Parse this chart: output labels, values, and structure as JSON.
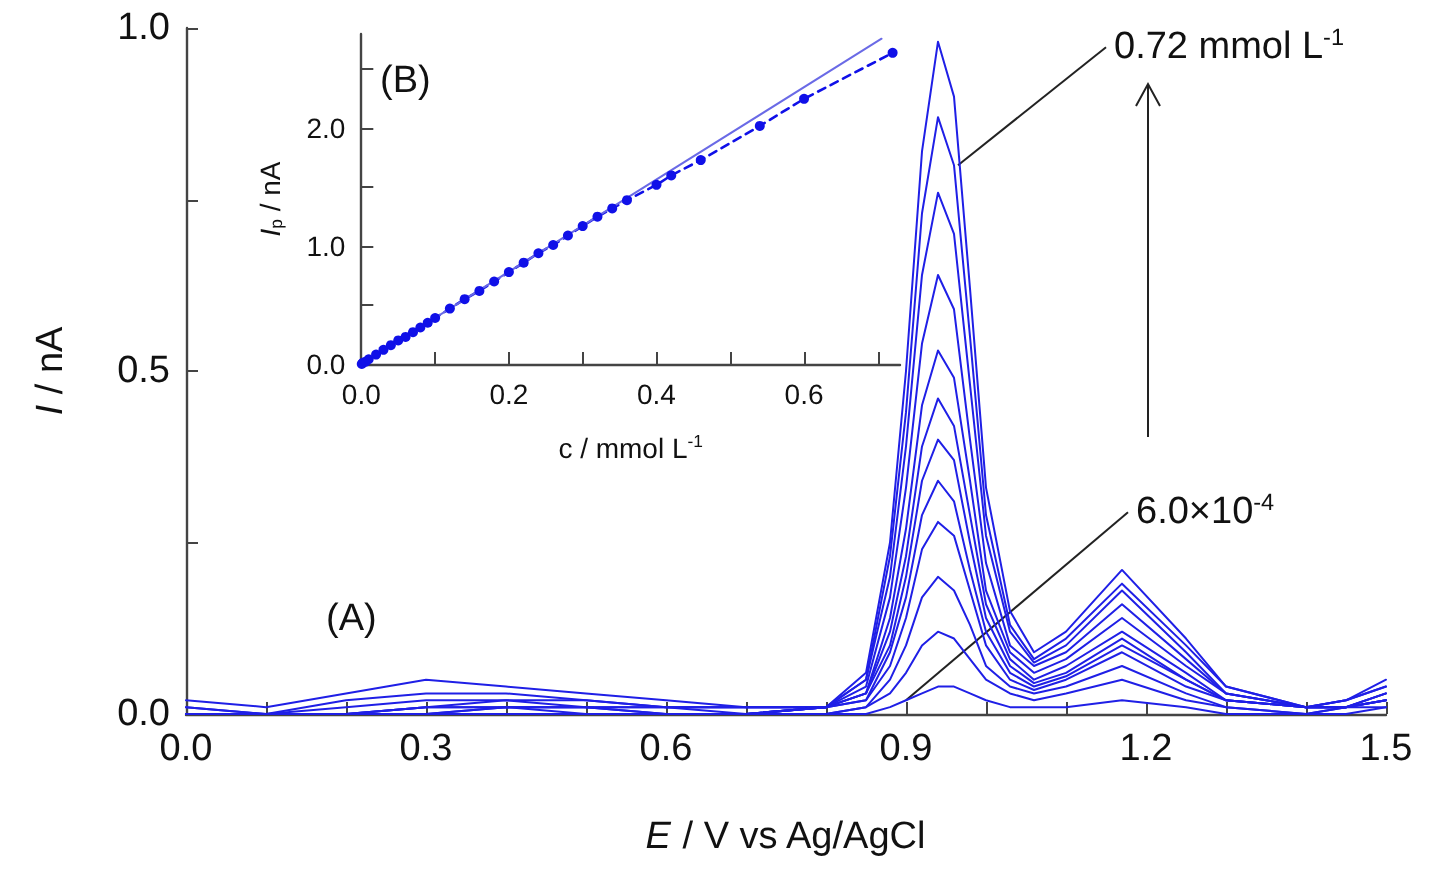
{
  "chart_data": [
    {
      "type": "line",
      "xlabel": "E / V vs Ag/AgCl",
      "ylabel": "I / nA",
      "x": [
        0,
        0.1,
        0.2,
        0.3,
        0.4,
        0.5,
        0.6,
        0.7,
        0.8,
        0.85,
        0.88,
        0.9,
        0.92,
        0.94,
        0.96,
        0.98,
        1.0,
        1.03,
        1.06,
        1.1,
        1.17,
        1.25,
        1.3,
        1.4,
        1.45,
        1.5
      ],
      "series": [
        {
          "color": "#1f1fe6",
          "values": [
            0.02,
            0.01,
            0.03,
            0.05,
            0.04,
            0.03,
            0.02,
            0.01,
            0.01,
            0.06,
            0.25,
            0.5,
            0.82,
            0.98,
            0.9,
            0.62,
            0.33,
            0.15,
            0.09,
            0.12,
            0.21,
            0.11,
            0.04,
            0.01,
            0.02,
            0.05
          ]
        },
        {
          "color": "#1f1fe6",
          "values": [
            0.01,
            0.0,
            0.02,
            0.03,
            0.03,
            0.02,
            0.01,
            0.01,
            0.01,
            0.05,
            0.23,
            0.44,
            0.73,
            0.87,
            0.8,
            0.55,
            0.29,
            0.13,
            0.08,
            0.11,
            0.19,
            0.1,
            0.04,
            0.01,
            0.02,
            0.04
          ]
        },
        {
          "color": "#1f1fe6",
          "values": [
            0.01,
            0.0,
            0.01,
            0.02,
            0.02,
            0.02,
            0.01,
            0.01,
            0.01,
            0.05,
            0.2,
            0.39,
            0.64,
            0.76,
            0.7,
            0.48,
            0.26,
            0.12,
            0.075,
            0.1,
            0.18,
            0.09,
            0.03,
            0.01,
            0.02,
            0.04
          ]
        },
        {
          "color": "#1f1fe6",
          "values": [
            0,
            0,
            0,
            0.01,
            0.02,
            0.01,
            0.01,
            0.01,
            0.01,
            0.04,
            0.17,
            0.33,
            0.54,
            0.64,
            0.59,
            0.4,
            0.22,
            0.1,
            0.07,
            0.09,
            0.16,
            0.08,
            0.03,
            0.01,
            0.01,
            0.03
          ]
        },
        {
          "color": "#1f1fe6",
          "values": [
            0,
            0,
            0,
            0.01,
            0.01,
            0.01,
            0.01,
            0,
            0.01,
            0.03,
            0.14,
            0.27,
            0.45,
            0.53,
            0.49,
            0.34,
            0.18,
            0.09,
            0.06,
            0.08,
            0.14,
            0.07,
            0.03,
            0.01,
            0.01,
            0.03
          ]
        },
        {
          "color": "#1f1fe6",
          "values": [
            0,
            0,
            0,
            0.01,
            0.01,
            0.01,
            0,
            0,
            0.01,
            0.03,
            0.12,
            0.23,
            0.39,
            0.46,
            0.42,
            0.29,
            0.16,
            0.08,
            0.05,
            0.07,
            0.12,
            0.06,
            0.02,
            0.01,
            0.01,
            0.03
          ]
        },
        {
          "color": "#1f1fe6",
          "values": [
            0,
            0,
            0,
            0,
            0.01,
            0.01,
            0,
            0,
            0.01,
            0.03,
            0.1,
            0.2,
            0.34,
            0.4,
            0.37,
            0.25,
            0.14,
            0.07,
            0.045,
            0.06,
            0.11,
            0.05,
            0.02,
            0.01,
            0.01,
            0.02
          ]
        },
        {
          "color": "#1f1fe6",
          "values": [
            0,
            0,
            0,
            0,
            0.01,
            0,
            0,
            0,
            0.01,
            0.02,
            0.09,
            0.17,
            0.29,
            0.34,
            0.31,
            0.21,
            0.12,
            0.06,
            0.04,
            0.055,
            0.1,
            0.05,
            0.02,
            0.01,
            0.01,
            0.02
          ]
        },
        {
          "color": "#1f1fe6",
          "values": [
            0,
            0,
            0,
            0,
            0,
            0,
            0,
            0,
            0.01,
            0.02,
            0.07,
            0.14,
            0.24,
            0.28,
            0.26,
            0.18,
            0.1,
            0.05,
            0.035,
            0.05,
            0.09,
            0.04,
            0.02,
            0.01,
            0.01,
            0.02
          ]
        },
        {
          "color": "#1f1fe6",
          "values": [
            0,
            0,
            0,
            0,
            0,
            0,
            0,
            0,
            0,
            0.01,
            0.05,
            0.1,
            0.17,
            0.2,
            0.18,
            0.13,
            0.07,
            0.04,
            0.03,
            0.04,
            0.07,
            0.03,
            0.01,
            0,
            0.01,
            0.02
          ]
        },
        {
          "color": "#1f1fe6",
          "values": [
            0,
            0,
            0,
            0,
            0,
            0,
            0,
            0,
            0,
            0.01,
            0.03,
            0.06,
            0.1,
            0.12,
            0.11,
            0.08,
            0.05,
            0.03,
            0.02,
            0.03,
            0.05,
            0.02,
            0.01,
            0,
            0.01,
            0.01
          ]
        },
        {
          "color": "#1f1fe6",
          "values": [
            0,
            0,
            0,
            0,
            0,
            0,
            0,
            0,
            0,
            0,
            0.01,
            0.02,
            0.03,
            0.04,
            0.04,
            0.03,
            0.02,
            0.01,
            0.01,
            0.01,
            0.02,
            0.01,
            0,
            0,
            0,
            0.01
          ]
        }
      ],
      "xlim": [
        0,
        1.5
      ],
      "xticks": [
        {
          "value": 0,
          "label": "0.0"
        },
        {
          "value": 0.1,
          "label": null
        },
        {
          "value": 0.2,
          "label": null
        },
        0.3,
        {
          "value": 0.4,
          "label": null
        },
        {
          "value": 0.5,
          "label": null
        },
        0.6,
        {
          "value": 0.7,
          "label": null
        },
        {
          "value": 0.8,
          "label": null
        },
        0.9,
        {
          "value": 1.0,
          "label": null
        },
        {
          "value": 1.1,
          "label": null
        },
        1.2,
        {
          "value": 1.3,
          "label": null
        },
        {
          "value": 1.4,
          "label": null
        },
        1.5
      ],
      "ylim": [
        0,
        1.0
      ],
      "yticks": [
        {
          "value": 0,
          "label": "0.0"
        },
        {
          "value": 0.25,
          "label": null
        },
        0.5,
        {
          "value": 0.75,
          "label": null
        },
        {
          "value": 1.0,
          "label": "1.0"
        }
      ],
      "annotations": [
        "(A)",
        {
          "text": "0.72 mmol L$^{-1}$",
          "x": 0.965,
          "y": 0.8
        },
        {
          "text": "6.0×10$^{-4}$",
          "x": 0.9,
          "y": 0.02
        }
      ],
      "marker": "none",
      "line_style": "solid"
    },
    {
      "type": "line",
      "xlabel": "c / mmol L$^{-1}$",
      "ylabel": "I$_{p}$ / nA",
      "series": [
        {
          "color": "#1010e8",
          "marker": "circle",
          "line_style": "dashed",
          "x": [
            0.0006,
            0.002,
            0.006,
            0.01,
            0.02,
            0.03,
            0.04,
            0.05,
            0.06,
            0.07,
            0.08,
            0.09,
            0.1,
            0.12,
            0.14,
            0.16,
            0.18,
            0.2,
            0.22,
            0.24,
            0.26,
            0.28,
            0.3,
            0.32,
            0.34,
            0.36,
            0.4,
            0.42,
            0.46,
            0.54,
            0.6,
            0.72
          ],
          "values": [
            0.0,
            0.01,
            0.02,
            0.04,
            0.08,
            0.12,
            0.16,
            0.2,
            0.23,
            0.27,
            0.31,
            0.35,
            0.39,
            0.47,
            0.55,
            0.62,
            0.7,
            0.78,
            0.86,
            0.94,
            1.01,
            1.09,
            1.17,
            1.25,
            1.32,
            1.39,
            1.52,
            1.6,
            1.73,
            2.02,
            2.25,
            2.64
          ]
        },
        {
          "color": "#6a6ae6",
          "marker": "none",
          "line_style": "solid",
          "x": [
            0,
            0.705
          ],
          "values": [
            0,
            2.76
          ]
        }
      ],
      "xlim": [
        0,
        0.73
      ],
      "xticks": [
        {
          "value": 0,
          "label": "0.0"
        },
        {
          "value": 0.1,
          "label": null
        },
        0.2,
        {
          "value": 0.3,
          "label": null
        },
        0.4,
        {
          "value": 0.5,
          "label": null
        },
        0.6,
        {
          "value": 0.7,
          "label": null
        }
      ],
      "ylim": [
        0,
        2.8
      ],
      "yticks": [
        {
          "value": 0,
          "label": "0.0"
        },
        {
          "value": 0.5,
          "label": null
        },
        {
          "value": 1.0,
          "label": "1.0"
        },
        {
          "value": 1.5,
          "label": null
        },
        {
          "value": 2.0,
          "label": "2.0"
        },
        {
          "value": 2.5,
          "label": null
        }
      ],
      "annotations": [
        "(B)"
      ]
    }
  ]
}
